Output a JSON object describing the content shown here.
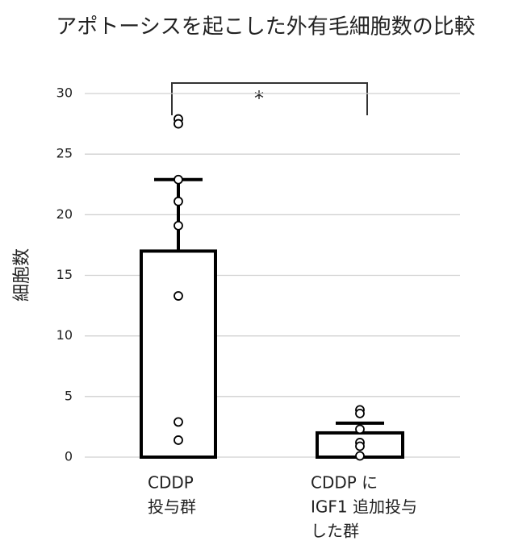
{
  "chart_data": {
    "type": "bar",
    "title": "アポトーシスを起こした外有毛細胞数の比較",
    "y_label": "細胞数",
    "categories": [
      [
        "CDDP",
        "投与群"
      ],
      [
        "CDDP に",
        "IGF1 追加投与",
        "した群"
      ]
    ],
    "values": [
      17,
      2
    ],
    "errors": [
      5.9,
      0.8
    ],
    "points": [
      [
        27.9,
        27.5,
        22.9,
        21.1,
        19.1,
        13.3,
        2.9,
        1.4
      ],
      [
        3.9,
        3.6,
        2.3,
        1.2,
        0.9,
        0.1
      ]
    ],
    "color": "#ffffff",
    "edge_color": "#000000",
    "ylim": [
      0,
      30
    ],
    "yticks": [
      0,
      5,
      10,
      15,
      20,
      25,
      30
    ],
    "grid": true,
    "annotations": [
      {
        "text": "*"
      }
    ]
  }
}
